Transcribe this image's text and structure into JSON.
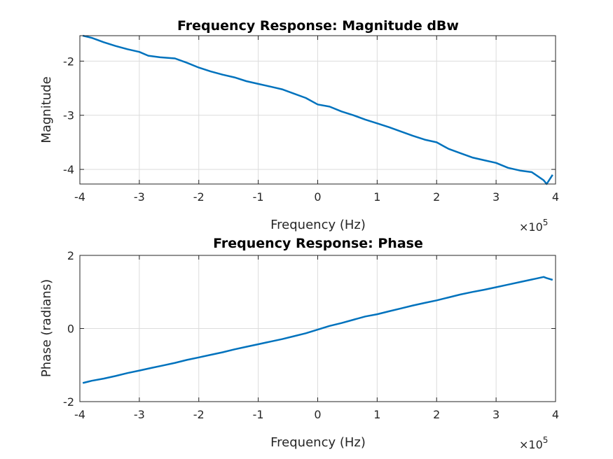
{
  "chart_data": [
    {
      "type": "line",
      "title": "Frequency Response: Magnitude dBw",
      "xlabel": "Frequency (Hz)",
      "ylabel": "Magnitude",
      "x_exponent_label": "×10",
      "x_exponent_value": "5",
      "xlim": [
        -4,
        4
      ],
      "ylim": [
        -4.27,
        -1.53
      ],
      "xticks": [
        -4,
        -3,
        -2,
        -1,
        0,
        1,
        2,
        3,
        4
      ],
      "yticks": [
        -4,
        -3,
        -2
      ],
      "xtick_labels": [
        "-4",
        "-3",
        "-2",
        "-1",
        "0",
        "1",
        "2",
        "3",
        "4"
      ],
      "ytick_labels": [
        "-4",
        "-3",
        "-2"
      ],
      "grid": true,
      "color": "#0072bd",
      "x": [
        -3.95,
        -3.8,
        -3.6,
        -3.4,
        -3.2,
        -3.0,
        -2.85,
        -2.65,
        -2.4,
        -2.2,
        -2.0,
        -1.8,
        -1.6,
        -1.4,
        -1.2,
        -1.0,
        -0.8,
        -0.6,
        -0.4,
        -0.2,
        0.0,
        0.2,
        0.4,
        0.6,
        0.8,
        1.0,
        1.2,
        1.4,
        1.6,
        1.8,
        2.0,
        2.2,
        2.4,
        2.6,
        2.8,
        3.0,
        3.2,
        3.4,
        3.6,
        3.8,
        3.85,
        3.95
      ],
      "y": [
        -1.53,
        -1.57,
        -1.65,
        -1.72,
        -1.78,
        -1.83,
        -1.9,
        -1.93,
        -1.95,
        -2.03,
        -2.12,
        -2.19,
        -2.25,
        -2.3,
        -2.37,
        -2.42,
        -2.47,
        -2.52,
        -2.6,
        -2.68,
        -2.8,
        -2.84,
        -2.93,
        -3.0,
        -3.08,
        -3.15,
        -3.22,
        -3.3,
        -3.38,
        -3.45,
        -3.5,
        -3.62,
        -3.7,
        -3.78,
        -3.83,
        -3.88,
        -3.97,
        -4.02,
        -4.05,
        -4.2,
        -4.27,
        -4.1
      ]
    },
    {
      "type": "line",
      "title": "Frequency Response: Phase",
      "xlabel": "Frequency (Hz)",
      "ylabel": "Phase (radians)",
      "x_exponent_label": "×10",
      "x_exponent_value": "5",
      "xlim": [
        -4,
        4
      ],
      "ylim": [
        -2,
        2
      ],
      "xticks": [
        -4,
        -3,
        -2,
        -1,
        0,
        1,
        2,
        3,
        4
      ],
      "yticks": [
        -2,
        0,
        2
      ],
      "xtick_labels": [
        "-4",
        "-3",
        "-2",
        "-1",
        "0",
        "1",
        "2",
        "3",
        "4"
      ],
      "ytick_labels": [
        "-2",
        "0",
        "2"
      ],
      "grid": true,
      "color": "#0072bd",
      "x": [
        -3.95,
        -3.8,
        -3.6,
        -3.4,
        -3.2,
        -3.0,
        -2.8,
        -2.6,
        -2.4,
        -2.2,
        -2.0,
        -1.8,
        -1.6,
        -1.4,
        -1.2,
        -1.0,
        -0.8,
        -0.6,
        -0.4,
        -0.2,
        0.0,
        0.2,
        0.4,
        0.6,
        0.8,
        1.0,
        1.2,
        1.4,
        1.6,
        1.8,
        2.0,
        2.2,
        2.4,
        2.6,
        2.8,
        3.0,
        3.2,
        3.4,
        3.6,
        3.8,
        3.85,
        3.95
      ],
      "y": [
        -1.49,
        -1.43,
        -1.37,
        -1.3,
        -1.22,
        -1.15,
        -1.08,
        -1.01,
        -0.94,
        -0.86,
        -0.79,
        -0.72,
        -0.65,
        -0.57,
        -0.5,
        -0.43,
        -0.36,
        -0.29,
        -0.21,
        -0.13,
        -0.03,
        0.07,
        0.15,
        0.24,
        0.33,
        0.39,
        0.47,
        0.55,
        0.63,
        0.7,
        0.77,
        0.85,
        0.93,
        1.0,
        1.06,
        1.13,
        1.2,
        1.27,
        1.34,
        1.41,
        1.38,
        1.33
      ]
    }
  ]
}
